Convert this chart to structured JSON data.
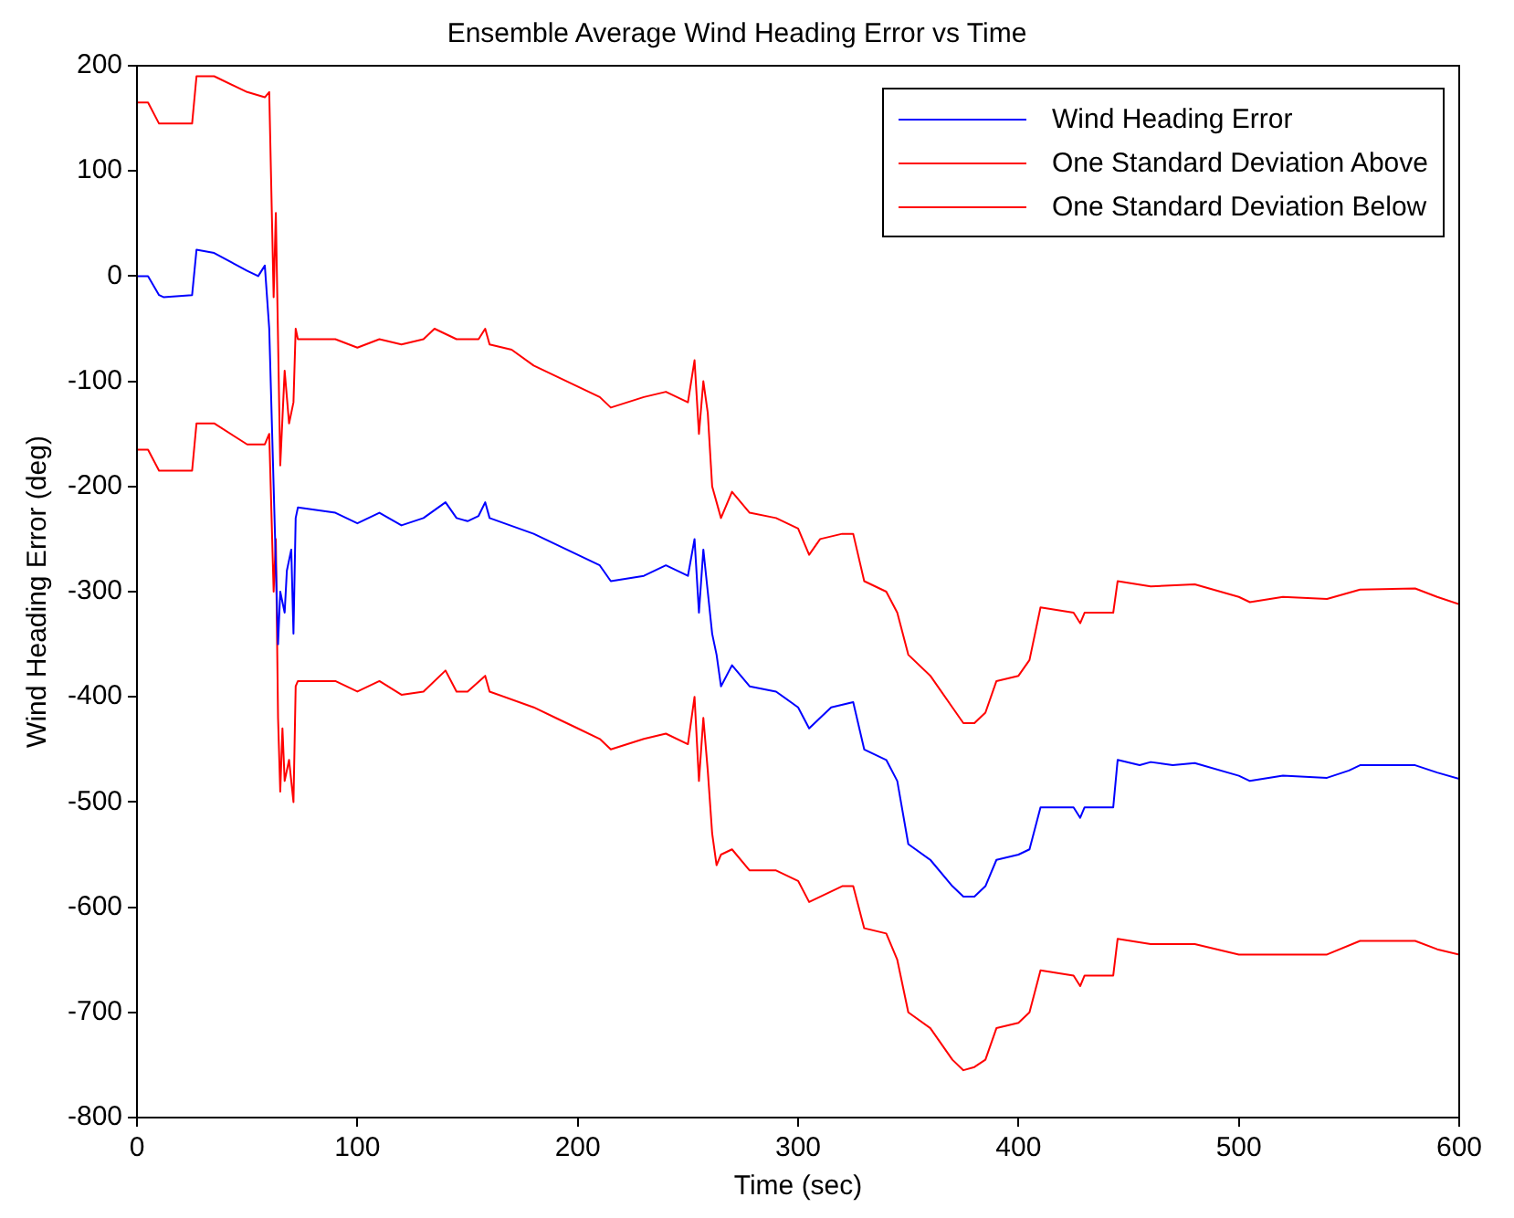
{
  "chart_data": {
    "type": "line",
    "title": "Ensemble Average Wind Heading Error vs Time",
    "xlabel": "Time (sec)",
    "ylabel": "Wind Heading Error (deg)",
    "xlim": [
      0,
      600
    ],
    "xticks": [
      0,
      100,
      200,
      300,
      400,
      500,
      600
    ],
    "ylim": [
      -800,
      200
    ],
    "yticks": [
      -800,
      -700,
      -600,
      -500,
      -400,
      -300,
      -200,
      -100,
      0,
      100,
      200
    ],
    "grid": false,
    "legend": "top right",
    "marker": "none",
    "line_style": "solid",
    "series": [
      {
        "name": "Wind Heading Error",
        "color": "#0000ff",
        "x": [
          0,
          5,
          10,
          12,
          25,
          27,
          35,
          50,
          55,
          58,
          60,
          62,
          64,
          65,
          67,
          68,
          70,
          71,
          72,
          73,
          90,
          100,
          110,
          120,
          130,
          140,
          145,
          150,
          155,
          158,
          160,
          180,
          190,
          200,
          210,
          215,
          230,
          240,
          250,
          253,
          255,
          257,
          259,
          261,
          263,
          265,
          270,
          278,
          290,
          300,
          305,
          310,
          315,
          325,
          330,
          340,
          345,
          350,
          360,
          370,
          375,
          380,
          385,
          390,
          400,
          405,
          410,
          425,
          428,
          430,
          443,
          445,
          455,
          460,
          470,
          480,
          500,
          505,
          520,
          540,
          550,
          555,
          580,
          590,
          600
        ],
        "values": [
          0,
          0,
          -18,
          -20,
          -18,
          25,
          22,
          5,
          0,
          10,
          -50,
          -200,
          -350,
          -300,
          -320,
          -280,
          -260,
          -340,
          -230,
          -220,
          -225,
          -235,
          -225,
          -237,
          -230,
          -215,
          -230,
          -233,
          -228,
          -215,
          -230,
          -245,
          -255,
          -265,
          -275,
          -290,
          -285,
          -275,
          -285,
          -250,
          -320,
          -260,
          -300,
          -340,
          -360,
          -390,
          -370,
          -390,
          -395,
          -410,
          -430,
          -420,
          -410,
          -405,
          -450,
          -460,
          -480,
          -540,
          -555,
          -580,
          -590,
          -590,
          -580,
          -555,
          -550,
          -545,
          -505,
          -505,
          -515,
          -505,
          -505,
          -460,
          -465,
          -462,
          -465,
          -463,
          -475,
          -480,
          -475,
          -477,
          -470,
          -465,
          -465,
          -472,
          -478
        ]
      },
      {
        "name": "One Standard Deviation Above",
        "color": "#ff0000",
        "x": [
          0,
          5,
          10,
          25,
          27,
          35,
          50,
          58,
          60,
          62,
          63,
          65,
          67,
          69,
          71,
          72,
          73,
          90,
          100,
          110,
          120,
          130,
          135,
          145,
          155,
          158,
          160,
          170,
          180,
          190,
          200,
          210,
          215,
          230,
          240,
          250,
          253,
          255,
          257,
          259,
          261,
          265,
          270,
          278,
          290,
          300,
          305,
          310,
          320,
          325,
          330,
          340,
          345,
          350,
          360,
          370,
          375,
          380,
          385,
          390,
          400,
          405,
          410,
          425,
          428,
          430,
          443,
          445,
          460,
          480,
          500,
          505,
          520,
          540,
          555,
          580,
          590,
          600
        ],
        "values": [
          165,
          165,
          145,
          145,
          190,
          190,
          175,
          170,
          175,
          -20,
          60,
          -180,
          -90,
          -140,
          -120,
          -50,
          -60,
          -60,
          -68,
          -60,
          -65,
          -60,
          -50,
          -60,
          -60,
          -50,
          -65,
          -70,
          -85,
          -95,
          -105,
          -115,
          -125,
          -115,
          -110,
          -120,
          -80,
          -150,
          -100,
          -130,
          -200,
          -230,
          -205,
          -225,
          -230,
          -240,
          -265,
          -250,
          -245,
          -245,
          -290,
          -300,
          -320,
          -360,
          -380,
          -410,
          -425,
          -425,
          -415,
          -385,
          -380,
          -365,
          -315,
          -320,
          -330,
          -320,
          -320,
          -290,
          -295,
          -293,
          -305,
          -310,
          -305,
          -307,
          -298,
          -297,
          -305,
          -312
        ]
      },
      {
        "name": "One Standard Deviation Below",
        "color": "#ff0000",
        "x": [
          0,
          5,
          10,
          25,
          27,
          35,
          50,
          58,
          60,
          62,
          63,
          64,
          65,
          66,
          67,
          69,
          71,
          72,
          73,
          90,
          100,
          110,
          120,
          130,
          140,
          145,
          150,
          158,
          160,
          180,
          190,
          200,
          210,
          215,
          230,
          240,
          250,
          253,
          255,
          257,
          259,
          261,
          263,
          265,
          270,
          278,
          290,
          300,
          305,
          310,
          320,
          325,
          330,
          340,
          345,
          350,
          360,
          370,
          375,
          380,
          385,
          390,
          400,
          405,
          410,
          425,
          428,
          430,
          443,
          445,
          460,
          480,
          500,
          505,
          540,
          555,
          580,
          590,
          600
        ],
        "values": [
          -165,
          -165,
          -185,
          -185,
          -140,
          -140,
          -160,
          -160,
          -150,
          -300,
          -250,
          -420,
          -490,
          -430,
          -480,
          -460,
          -500,
          -390,
          -385,
          -385,
          -395,
          -385,
          -398,
          -395,
          -375,
          -395,
          -395,
          -380,
          -395,
          -410,
          -420,
          -430,
          -440,
          -450,
          -440,
          -435,
          -445,
          -400,
          -480,
          -420,
          -470,
          -530,
          -560,
          -550,
          -545,
          -565,
          -565,
          -575,
          -595,
          -590,
          -580,
          -580,
          -620,
          -625,
          -650,
          -700,
          -715,
          -745,
          -755,
          -752,
          -745,
          -715,
          -710,
          -700,
          -660,
          -665,
          -675,
          -665,
          -665,
          -630,
          -635,
          -635,
          -645,
          -645,
          -645,
          -632,
          -632,
          -640,
          -645
        ]
      }
    ]
  }
}
